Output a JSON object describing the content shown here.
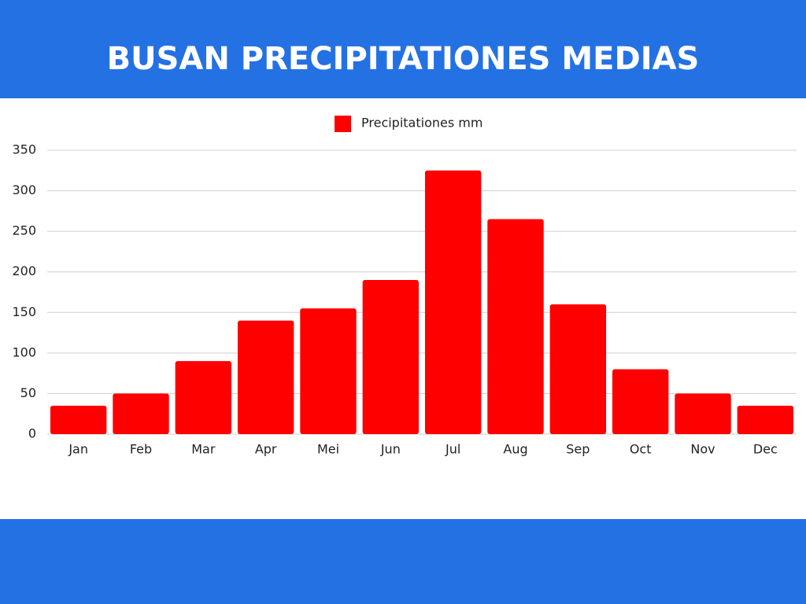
{
  "chart_data": {
    "type": "bar",
    "title": "BUSAN PRECIPITATIONES MEDIAS",
    "categories": [
      "Jan",
      "Feb",
      "Mar",
      "Apr",
      "Mei",
      "Jun",
      "Jul",
      "Aug",
      "Sep",
      "Oct",
      "Nov",
      "Dec"
    ],
    "series": [
      {
        "name": "Precipitationes mm",
        "color": "#ff0000",
        "values": [
          35,
          50,
          90,
          140,
          155,
          190,
          325,
          265,
          160,
          80,
          50,
          35
        ]
      }
    ],
    "ylim": [
      0,
      350
    ],
    "yticks": [
      0,
      50,
      100,
      150,
      200,
      250,
      300,
      350
    ],
    "grid": true,
    "legend": "top"
  }
}
